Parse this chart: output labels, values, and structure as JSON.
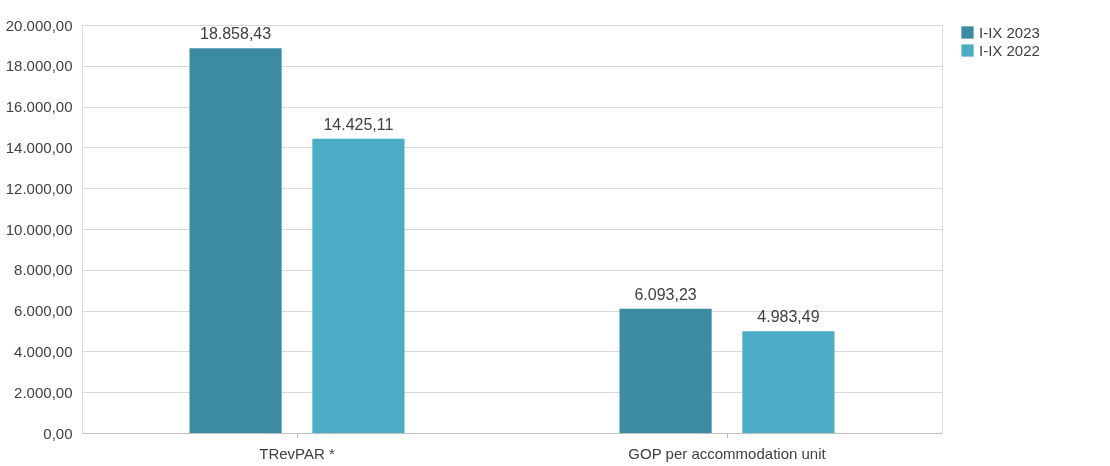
{
  "chart_data": {
    "type": "bar",
    "categories": [
      "TRevPAR *",
      "GOP per accommodation unit"
    ],
    "series": [
      {
        "name": "I-IX 2023",
        "color": "#3b8ca2",
        "values": [
          18858.43,
          6093.23
        ],
        "value_labels": [
          "18.858,43",
          "6.093,23"
        ]
      },
      {
        "name": "I-IX 2022",
        "color": "#4bacc6",
        "values": [
          14425.11,
          4983.49
        ],
        "value_labels": [
          "14.425,11",
          "4.983,49"
        ]
      }
    ],
    "ylim": [
      0,
      20000
    ],
    "yticks": [
      {
        "value": 0,
        "label": "0,00"
      },
      {
        "value": 2000,
        "label": "2.000,00"
      },
      {
        "value": 4000,
        "label": "4.000,00"
      },
      {
        "value": 6000,
        "label": "6.000,00"
      },
      {
        "value": 8000,
        "label": "8.000,00"
      },
      {
        "value": 10000,
        "label": "10.000,00"
      },
      {
        "value": 12000,
        "label": "12.000,00"
      },
      {
        "value": 14000,
        "label": "14.000,00"
      },
      {
        "value": 16000,
        "label": "16.000,00"
      },
      {
        "value": 18000,
        "label": "18.000,00"
      },
      {
        "value": 20000,
        "label": "20.000,00"
      }
    ],
    "grid": "y",
    "legend": "right"
  }
}
